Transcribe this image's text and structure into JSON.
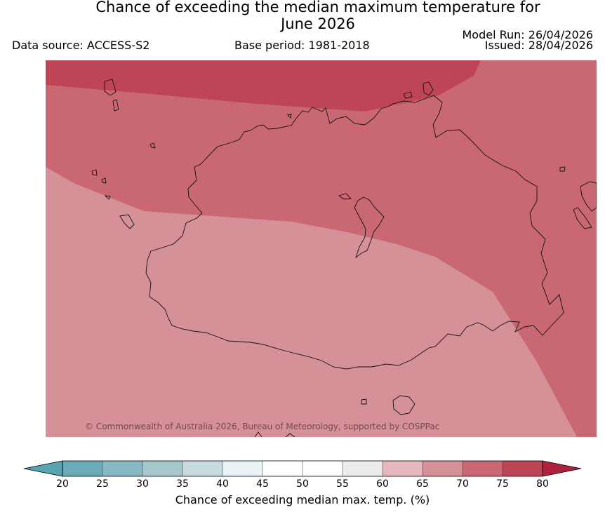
{
  "title_line1": "Chance of exceeding the median maximum temperature for",
  "title_line2": "June 2026",
  "data_source": "Data source: ACCESS-S2",
  "base_period": "Base period: 1981-2018",
  "model_run": "Model Run: 26/04/2026",
  "issued": "Issued: 28/04/2026",
  "copyright": "© Commonwealth of Australia 2026, Bureau of Meteorology, supported by COSPPac",
  "colorbar": {
    "title": "Chance of exceeding median max. temp. (%)",
    "ticks": [
      "20",
      "25",
      "30",
      "35",
      "40",
      "45",
      "50",
      "55",
      "60",
      "65",
      "70",
      "75",
      "80"
    ],
    "bins": [
      {
        "from": 20,
        "to": 25,
        "color": "#6aabb8"
      },
      {
        "from": 25,
        "to": 30,
        "color": "#88b8c3"
      },
      {
        "from": 30,
        "to": 35,
        "color": "#a6c8cd"
      },
      {
        "from": 35,
        "to": 40,
        "color": "#c8dbe0"
      },
      {
        "from": 40,
        "to": 45,
        "color": "#e9f2f4"
      },
      {
        "from": 45,
        "to": 50,
        "color": "#ffffff"
      },
      {
        "from": 50,
        "to": 55,
        "color": "#ffffff"
      },
      {
        "from": 55,
        "to": 60,
        "color": "#ececec"
      },
      {
        "from": 60,
        "to": 65,
        "color": "#e4b8bc"
      },
      {
        "from": 65,
        "to": 70,
        "color": "#d69097"
      },
      {
        "from": 70,
        "to": 75,
        "color": "#c96873"
      },
      {
        "from": 75,
        "to": 80,
        "color": "#be4555"
      }
    ],
    "under_color": "#58a3b2",
    "over_color": "#ae2240"
  },
  "map_zones": [
    {
      "name": "zone-65-70",
      "color": "#d69097"
    },
    {
      "name": "zone-70-75",
      "color": "#c96873"
    },
    {
      "name": "zone-75-80",
      "color": "#be4555"
    }
  ]
}
